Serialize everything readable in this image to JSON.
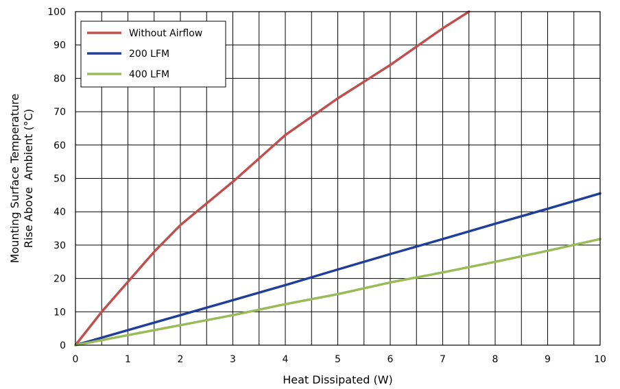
{
  "chart_data": {
    "type": "line",
    "title": "",
    "xlabel": "Heat Dissipated (W)",
    "ylabel_lines": [
      "Mounting Surface Temperature",
      "Rise Above  Ambient (°C)"
    ],
    "xlim": [
      0,
      10
    ],
    "ylim": [
      0,
      100
    ],
    "x_ticks": [
      0,
      1,
      2,
      3,
      4,
      5,
      6,
      7,
      8,
      9,
      10
    ],
    "y_ticks": [
      0,
      10,
      20,
      30,
      40,
      50,
      60,
      70,
      80,
      90,
      100
    ],
    "x_minor_step": 0.5,
    "grid": true,
    "legend_position": "top-left",
    "series": [
      {
        "name": "Without Airflow",
        "color": "#c0504d",
        "x": [
          0,
          0.5,
          1,
          1.5,
          2,
          2.5,
          3,
          3.5,
          4,
          4.5,
          5,
          5.5,
          6,
          6.5,
          7,
          7.5
        ],
        "y": [
          0,
          10,
          19,
          28,
          36,
          42.5,
          49,
          56,
          63,
          68.5,
          74,
          79,
          84,
          89.5,
          95,
          100
        ]
      },
      {
        "name": "200 LFM",
        "color": "#1f3f99",
        "x": [
          0,
          1,
          2,
          3,
          4,
          5,
          6,
          7,
          8,
          9,
          10
        ],
        "y": [
          0,
          4.5,
          9,
          13.5,
          18,
          22.7,
          27.3,
          31.8,
          36.4,
          40.9,
          45.5
        ]
      },
      {
        "name": "400 LFM",
        "color": "#9bbb59",
        "x": [
          0,
          1,
          2,
          3,
          4,
          5,
          6,
          7,
          8,
          9,
          10
        ],
        "y": [
          0,
          3,
          6,
          9,
          12.3,
          15.3,
          18.8,
          21.8,
          25,
          28.3,
          31.8
        ]
      }
    ]
  }
}
